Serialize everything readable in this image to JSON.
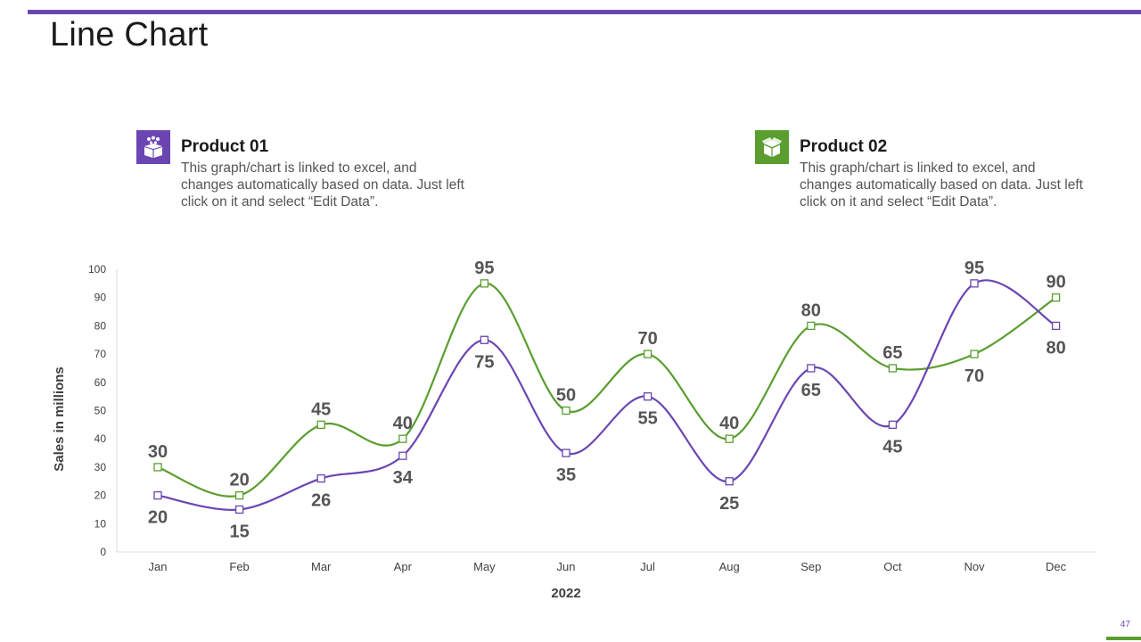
{
  "slide": {
    "title": "Line Chart",
    "page_number": "47",
    "accent_color": "#6b46b3",
    "secondary_color": "#5a9e2f"
  },
  "legend": [
    {
      "title": "Product 01",
      "description": "This graph/chart is linked to excel, and changes automatically based on data. Just left click on it and select “Edit Data”.",
      "icon": "people-box-icon",
      "color": "#6b46b3"
    },
    {
      "title": "Product 02",
      "description": "This graph/chart is linked to excel, and changes automatically based on data. Just left click on it and select “Edit Data”.",
      "icon": "open-box-icon",
      "color": "#5a9e2f"
    }
  ],
  "chart_data": {
    "type": "line",
    "title": "",
    "xlabel": "2022",
    "ylabel": "Sales in millions",
    "categories": [
      "Jan",
      "Feb",
      "Mar",
      "Apr",
      "May",
      "Jun",
      "Jul",
      "Aug",
      "Sep",
      "Oct",
      "Nov",
      "Dec"
    ],
    "ylim": [
      0,
      100
    ],
    "yticks": [
      0,
      10,
      20,
      30,
      40,
      50,
      60,
      70,
      80,
      90,
      100
    ],
    "grid": false,
    "smooth": true,
    "series": [
      {
        "name": "Product 01",
        "color": "#6b46b3",
        "values": [
          20,
          15,
          26,
          34,
          75,
          35,
          55,
          25,
          65,
          45,
          95,
          80
        ],
        "label_side": [
          "below",
          "below",
          "below",
          "below",
          "below",
          "below",
          "below",
          "below",
          "below",
          "below",
          "above",
          "below"
        ]
      },
      {
        "name": "Product 02",
        "color": "#5a9e2f",
        "values": [
          30,
          20,
          45,
          40,
          95,
          50,
          70,
          40,
          80,
          65,
          70,
          90
        ],
        "label_side": [
          "above",
          "above",
          "above",
          "above",
          "above",
          "above",
          "above",
          "above",
          "above",
          "above",
          "below",
          "above"
        ]
      }
    ]
  }
}
